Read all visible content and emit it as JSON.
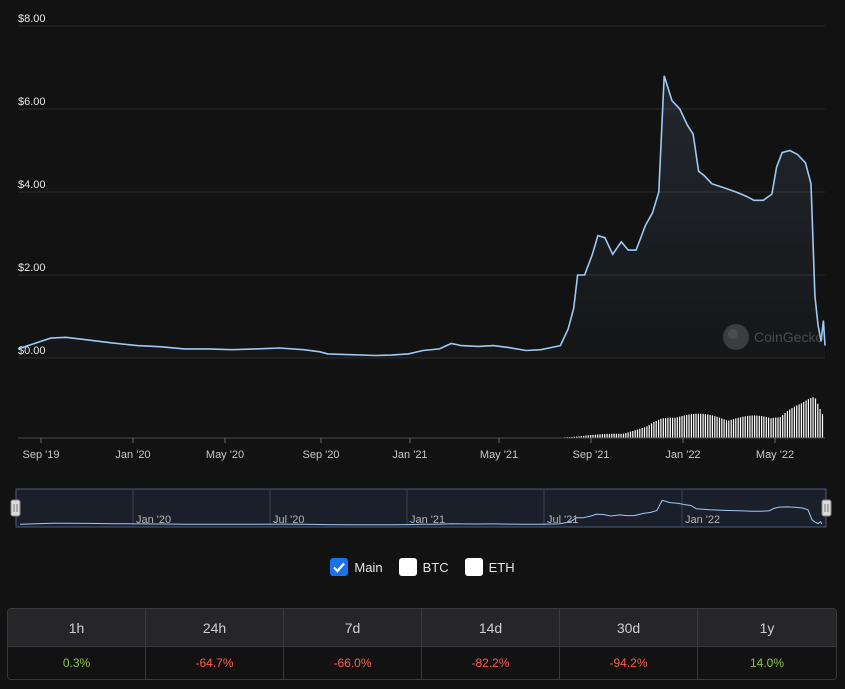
{
  "chart_data": {
    "type": "line",
    "title": "",
    "xlabel": "",
    "ylabel": "",
    "y_ticks": [
      "$8.00",
      "$6.00",
      "$4.00",
      "$2.00",
      "$0.00"
    ],
    "ylim": [
      0,
      8
    ],
    "x_ticks": [
      "Sep '19",
      "Jan '20",
      "May '20",
      "Sep '20",
      "Jan '21",
      "May '21",
      "Sep '21",
      "Jan '22",
      "May '22"
    ],
    "navigator_ticks": [
      "Jan '20",
      "Jul '20",
      "Jan '21",
      "Jul '21",
      "Jan '22"
    ],
    "x_range": [
      "2019-08-20",
      "2022-06-19"
    ],
    "grid": true,
    "series": [
      {
        "name": "Main",
        "color": "#9ec9f5",
        "points": [
          [
            "2019-08-20",
            0.22
          ],
          [
            "2019-09-10",
            0.35
          ],
          [
            "2019-10-01",
            0.48
          ],
          [
            "2019-10-20",
            0.5
          ],
          [
            "2019-11-15",
            0.44
          ],
          [
            "2019-12-20",
            0.36
          ],
          [
            "2020-01-20",
            0.3
          ],
          [
            "2020-02-20",
            0.27
          ],
          [
            "2020-03-20",
            0.22
          ],
          [
            "2020-04-20",
            0.22
          ],
          [
            "2020-05-20",
            0.2
          ],
          [
            "2020-06-20",
            0.22
          ],
          [
            "2020-07-20",
            0.24
          ],
          [
            "2020-08-20",
            0.2
          ],
          [
            "2020-09-10",
            0.15
          ],
          [
            "2020-09-20",
            0.1
          ],
          [
            "2020-10-20",
            0.08
          ],
          [
            "2020-11-20",
            0.06
          ],
          [
            "2020-12-10",
            0.07
          ],
          [
            "2021-01-01",
            0.1
          ],
          [
            "2021-01-20",
            0.18
          ],
          [
            "2021-02-10",
            0.22
          ],
          [
            "2021-02-25",
            0.35
          ],
          [
            "2021-03-10",
            0.3
          ],
          [
            "2021-04-01",
            0.28
          ],
          [
            "2021-04-20",
            0.3
          ],
          [
            "2021-05-10",
            0.25
          ],
          [
            "2021-06-01",
            0.18
          ],
          [
            "2021-06-20",
            0.2
          ],
          [
            "2021-07-15",
            0.3
          ],
          [
            "2021-07-25",
            0.7
          ],
          [
            "2021-08-01",
            1.2
          ],
          [
            "2021-08-06",
            2.0
          ],
          [
            "2021-08-15",
            2.0
          ],
          [
            "2021-08-25",
            2.5
          ],
          [
            "2021-09-01",
            2.95
          ],
          [
            "2021-09-10",
            2.9
          ],
          [
            "2021-09-20",
            2.5
          ],
          [
            "2021-10-01",
            2.8
          ],
          [
            "2021-10-10",
            2.6
          ],
          [
            "2021-10-20",
            2.6
          ],
          [
            "2021-11-01",
            3.2
          ],
          [
            "2021-11-10",
            3.5
          ],
          [
            "2021-11-18",
            4.0
          ],
          [
            "2021-11-25",
            6.8
          ],
          [
            "2021-12-05",
            6.2
          ],
          [
            "2021-12-15",
            6.0
          ],
          [
            "2021-12-25",
            5.6
          ],
          [
            "2022-01-01",
            5.4
          ],
          [
            "2022-01-08",
            4.5
          ],
          [
            "2022-01-15",
            4.4
          ],
          [
            "2022-01-25",
            4.2
          ],
          [
            "2022-02-10",
            4.1
          ],
          [
            "2022-02-25",
            4.0
          ],
          [
            "2022-03-10",
            3.9
          ],
          [
            "2022-03-20",
            3.8
          ],
          [
            "2022-04-01",
            3.8
          ],
          [
            "2022-04-12",
            3.95
          ],
          [
            "2022-04-18",
            4.6
          ],
          [
            "2022-04-25",
            4.95
          ],
          [
            "2022-05-05",
            5.0
          ],
          [
            "2022-05-15",
            4.9
          ],
          [
            "2022-05-25",
            4.7
          ],
          [
            "2022-06-01",
            4.2
          ],
          [
            "2022-06-06",
            1.5
          ],
          [
            "2022-06-10",
            0.8
          ],
          [
            "2022-06-14",
            0.4
          ],
          [
            "2022-06-17",
            0.9
          ],
          [
            "2022-06-19",
            0.3
          ]
        ]
      }
    ],
    "volume_relative": [
      [
        "2021-07-20",
        0.02
      ],
      [
        "2021-08-10",
        0.05
      ],
      [
        "2021-09-01",
        0.08
      ],
      [
        "2021-10-01",
        0.12
      ],
      [
        "2021-11-01",
        0.25
      ],
      [
        "2021-11-20",
        0.45
      ],
      [
        "2021-12-10",
        0.6
      ],
      [
        "2022-01-01",
        0.55
      ],
      [
        "2022-02-01",
        0.52
      ],
      [
        "2022-03-01",
        0.5
      ],
      [
        "2022-04-10",
        0.5
      ],
      [
        "2022-05-01",
        0.7
      ],
      [
        "2022-05-20",
        0.78
      ],
      [
        "2022-06-05",
        0.95
      ],
      [
        "2022-06-15",
        0.6
      ]
    ],
    "watermark": "CoinGecko",
    "colors": {
      "background": "#121213",
      "grid": "#2c2c2e",
      "line": "#9ec9f5",
      "volume": "#ffffff"
    }
  },
  "toggles": [
    {
      "label": "Main",
      "checked": true
    },
    {
      "label": "BTC",
      "checked": false
    },
    {
      "label": "ETH",
      "checked": false
    }
  ],
  "change_table": {
    "headers": [
      "1h",
      "24h",
      "7d",
      "14d",
      "30d",
      "1y"
    ],
    "values": [
      "0.3%",
      "-64.7%",
      "-66.0%",
      "-82.2%",
      "-94.2%",
      "14.0%"
    ],
    "positive_color": "#8dc63f",
    "negative_color": "#ff5c4d"
  }
}
